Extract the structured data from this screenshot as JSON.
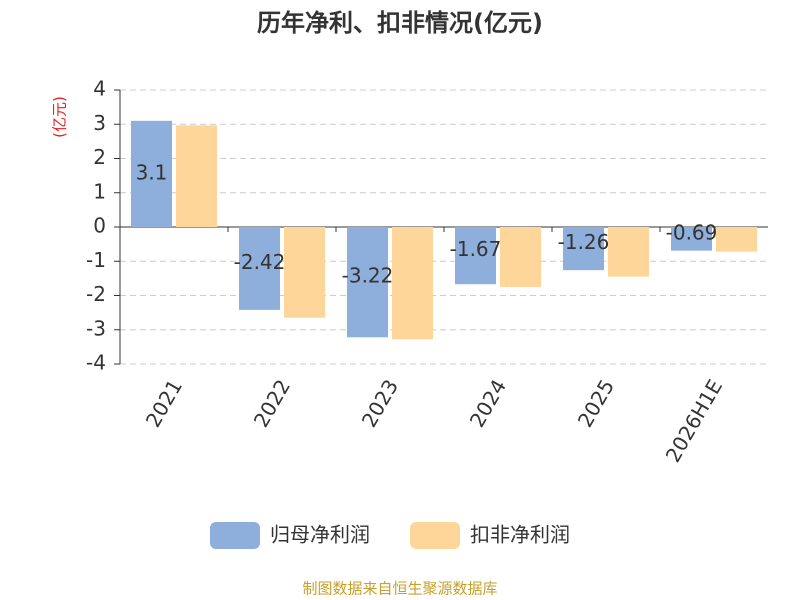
{
  "chart_data": {
    "type": "bar",
    "title": "历年净利、扣非情况(亿元)",
    "y_label": "(亿元)",
    "categories": [
      "2021",
      "2022",
      "2023",
      "2024",
      "2025",
      "2026H1E"
    ],
    "series": [
      {
        "name": "归母净利润",
        "color": "#8eaedc",
        "values": [
          3.1,
          -2.42,
          -3.22,
          -1.67,
          -1.26,
          -0.69
        ]
      },
      {
        "name": "扣非净利润",
        "color": "#ffd699",
        "values": [
          2.97,
          -2.65,
          -3.28,
          -1.75,
          -1.45,
          -0.72
        ]
      }
    ],
    "ylim": [
      -4,
      4
    ],
    "yticks": [
      -4,
      -3,
      -2,
      -1,
      0,
      1,
      2,
      3,
      4
    ],
    "grid": true,
    "source": "制图数据来自恒生聚源数据库"
  }
}
